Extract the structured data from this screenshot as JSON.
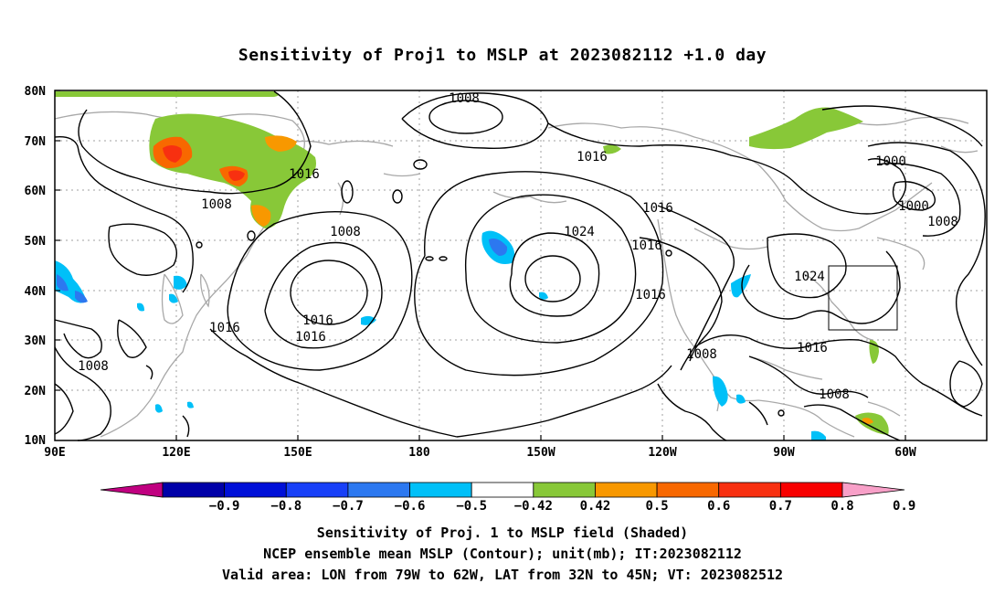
{
  "title": "Sensitivity of Proj1 to MSLP at 2023082112 +1.0 day",
  "lat_labels": [
    "80N",
    "70N",
    "60N",
    "50N",
    "40N",
    "30N",
    "20N",
    "10N"
  ],
  "lon_labels": [
    "90E",
    "120E",
    "150E",
    "180",
    "150W",
    "120W",
    "90W",
    "60W"
  ],
  "contour_labels": [
    "1008",
    "1016",
    "1000",
    "1000",
    "1008",
    "1016",
    "1024",
    "1016",
    "1016",
    "1016",
    "1024",
    "1008",
    "1016",
    "1016",
    "1008",
    "1008",
    "1016",
    "1016",
    "1008",
    "1008"
  ],
  "colorbar": {
    "ticks": [
      "−0.9",
      "−0.8",
      "−0.7",
      "−0.6",
      "−0.5",
      "−0.42",
      "0.42",
      "0.5",
      "0.6",
      "0.7",
      "0.8",
      "0.9"
    ],
    "colors": [
      "#c00080",
      "#0000a8",
      "#0010d8",
      "#1840f8",
      "#2c78f0",
      "#00c0f8",
      "#ffffff",
      "#88c838",
      "#f89800",
      "#f86800",
      "#f83010",
      "#f80000",
      "#f8a0c8"
    ]
  },
  "captions": {
    "line1": "Sensitivity of Proj. 1 to MSLP field (Shaded)",
    "line2": "NCEP ensemble mean MSLP (Contour); unit(mb); IT:2023082112",
    "line3": "Valid area: LON from 79W to 62W, LAT from 32N to 45N; VT: 2023082512"
  }
}
